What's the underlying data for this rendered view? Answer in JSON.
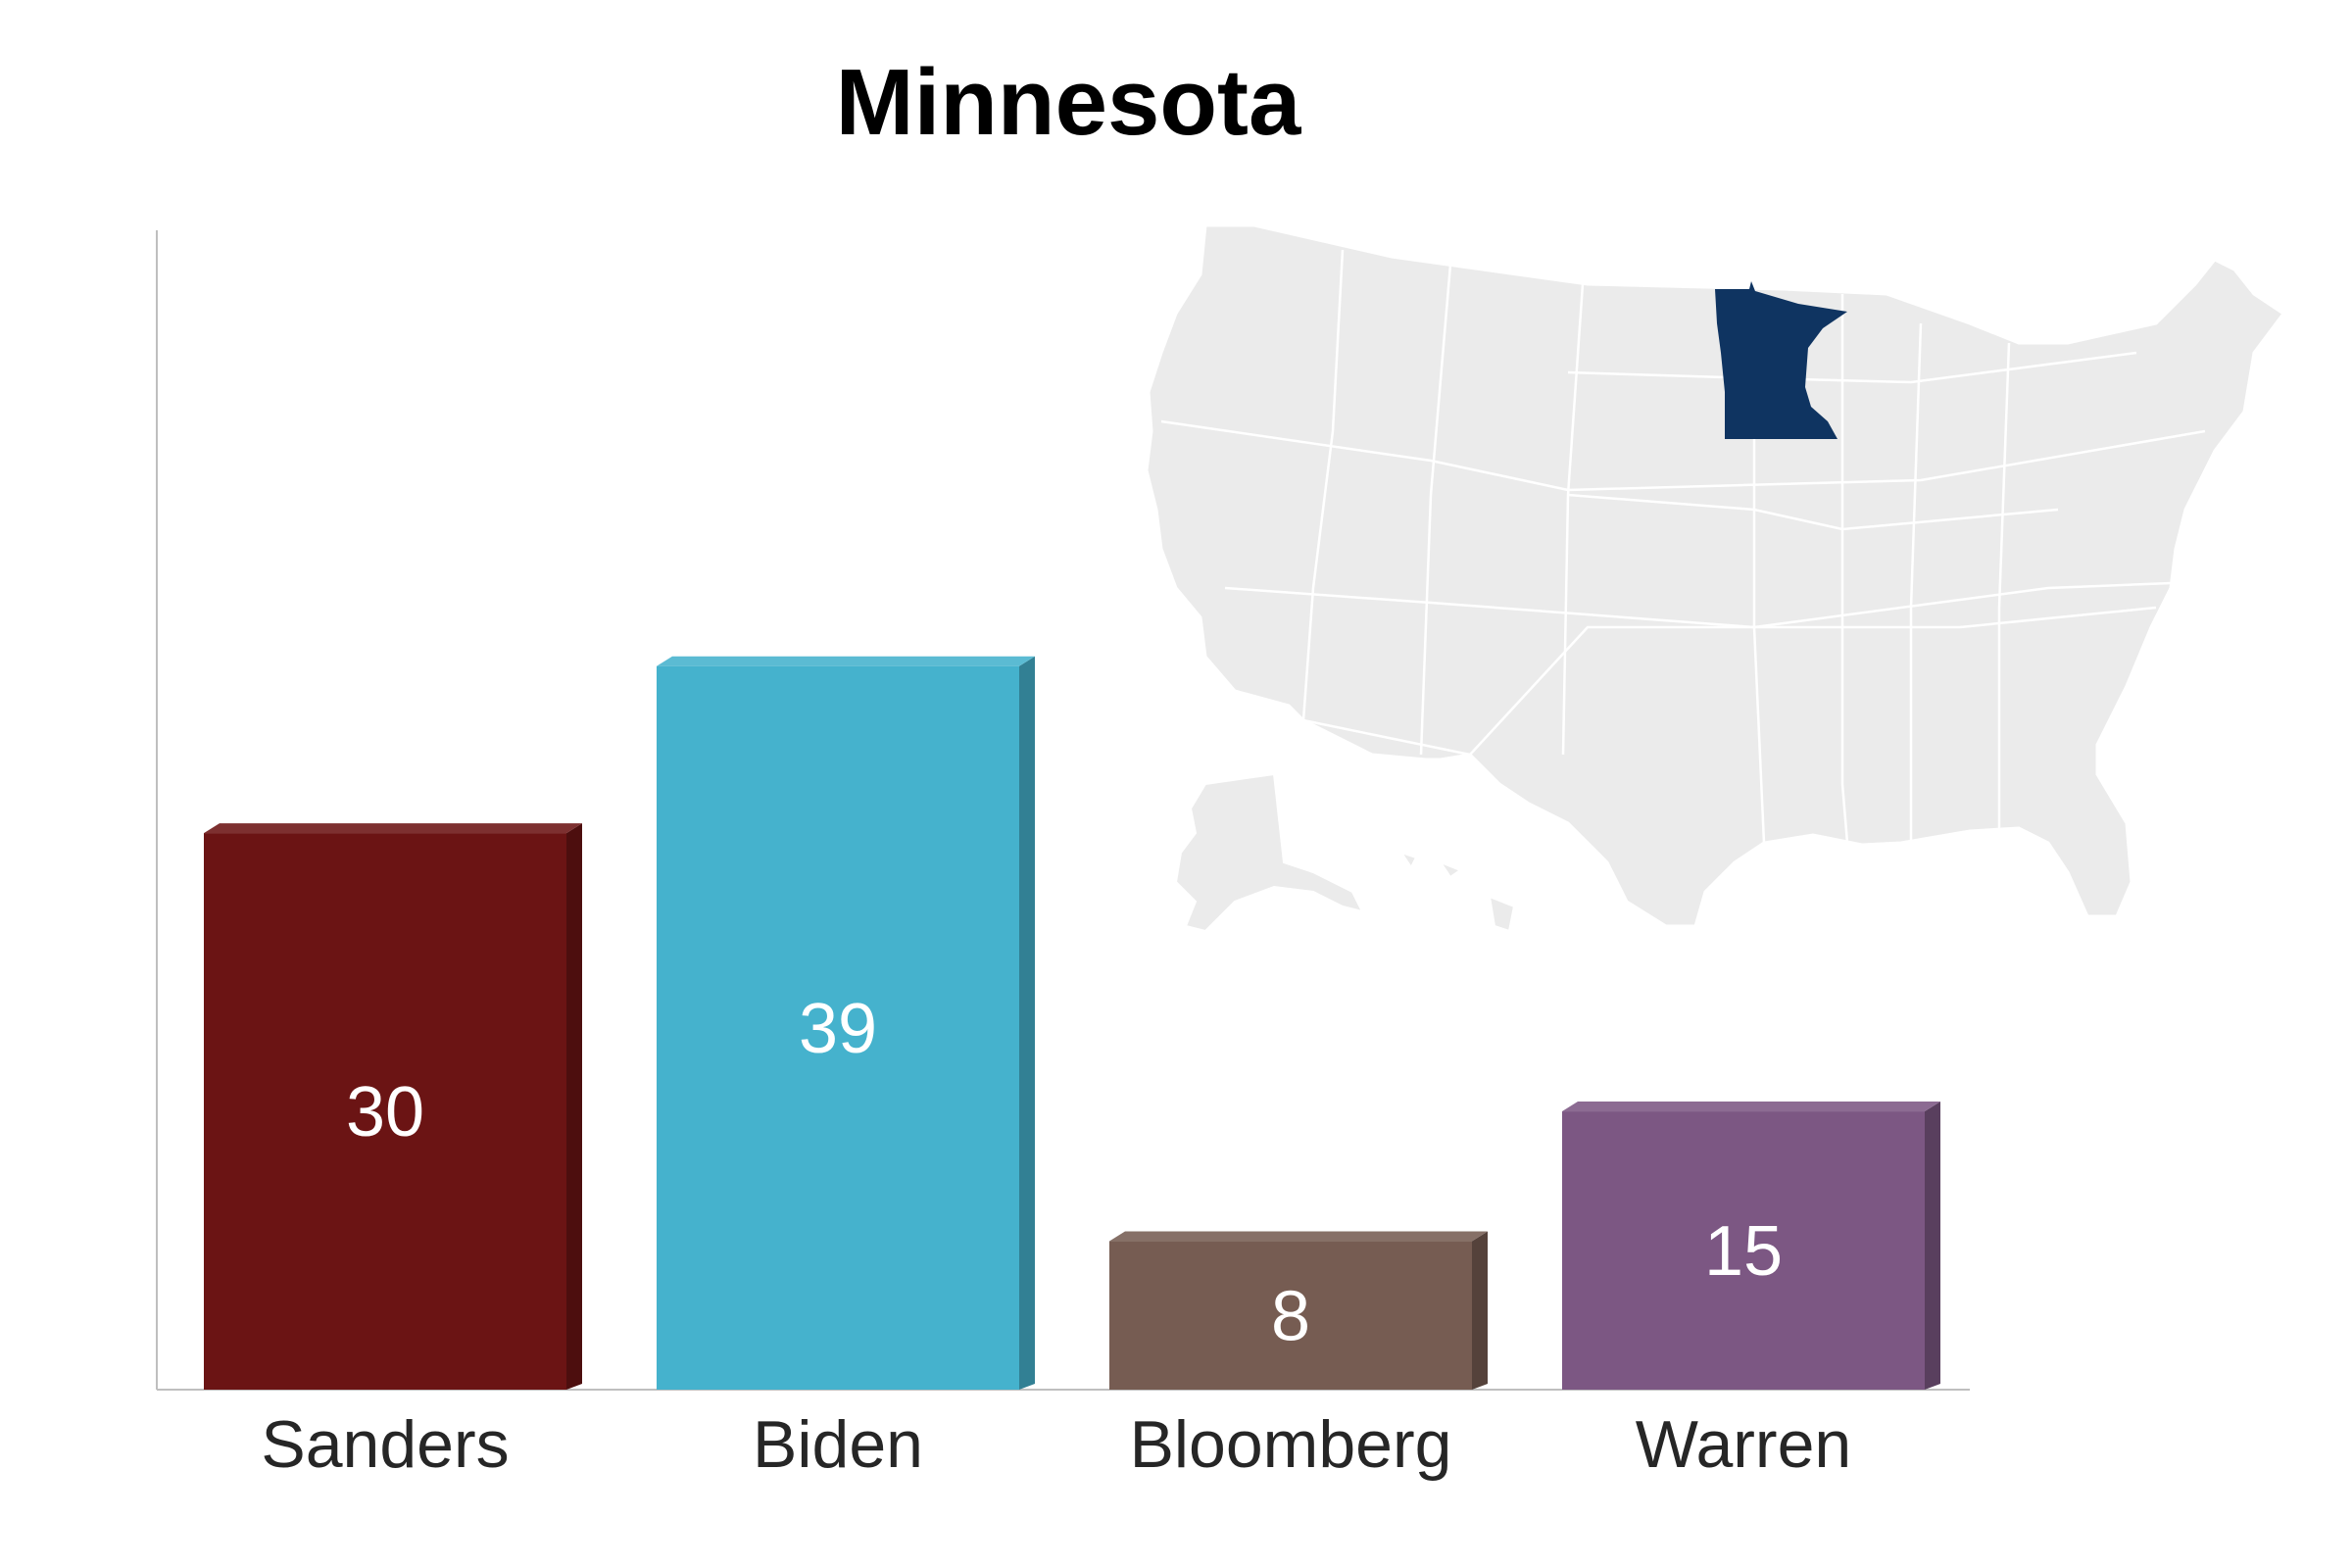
{
  "chart_data": {
    "type": "bar",
    "title": "Minnesota",
    "categories": [
      "Sanders",
      "Biden",
      "Bloomberg",
      "Warren"
    ],
    "values": [
      30,
      39,
      8,
      15
    ],
    "colors": [
      "#6b1414",
      "#45b2cd",
      "#765c52",
      "#7c5783"
    ],
    "ylim": [
      0,
      60
    ],
    "grid": false,
    "highlighted_state": "Minnesota",
    "highlight_color": "#0f3461"
  }
}
